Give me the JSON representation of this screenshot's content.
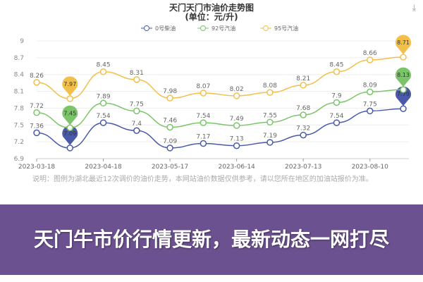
{
  "chart_data": {
    "type": "line",
    "title": "天门天门市油价走势图",
    "subtitle": "(单位：元/升)",
    "x": [
      "2023-03-18",
      "",
      "2023-04-18",
      "",
      "2023-05-17",
      "",
      "2023-06-14",
      "",
      "2023-07-13",
      "",
      "2023-08-10",
      ""
    ],
    "x_tick_labels": [
      "2023-03-18",
      "2023-04-18",
      "2023-05-17",
      "2023-06-14",
      "2023-07-13",
      "2023-08-10"
    ],
    "y_ticks": [
      6.9,
      7.2,
      7.5,
      7.8,
      8.1,
      8.4,
      8.7,
      9
    ],
    "ylim": [
      6.9,
      9
    ],
    "grid": true,
    "legend": "top",
    "series": [
      {
        "name": "0号柴油",
        "color": "#4a5aa8",
        "values": [
          7.36,
          7.09,
          7.54,
          7.4,
          7.09,
          7.17,
          7.13,
          7.19,
          7.32,
          7.54,
          7.75,
          7.79
        ],
        "min_index": 1,
        "max_index": 11
      },
      {
        "name": "92号汽油",
        "color": "#7cc46a",
        "values": [
          7.72,
          7.45,
          7.89,
          7.75,
          7.46,
          7.54,
          7.49,
          7.55,
          7.68,
          7.9,
          8.09,
          8.13
        ],
        "min_index": 1,
        "max_index": 11
      },
      {
        "name": "95号汽油",
        "color": "#f2c04a",
        "values": [
          8.26,
          7.97,
          8.45,
          8.31,
          7.98,
          8.07,
          8.02,
          8.08,
          8.21,
          8.45,
          8.66,
          8.71
        ],
        "min_index": 1,
        "max_index": 11
      }
    ]
  },
  "note": "说明：图例为湖北最近12次调价的油价走势，本网站油价数据仅供参考，请以您所在地区的加油站报价为准。",
  "banner": "天门牛市价行情更新，最新动态一网打尽",
  "download_icon": "download-icon"
}
